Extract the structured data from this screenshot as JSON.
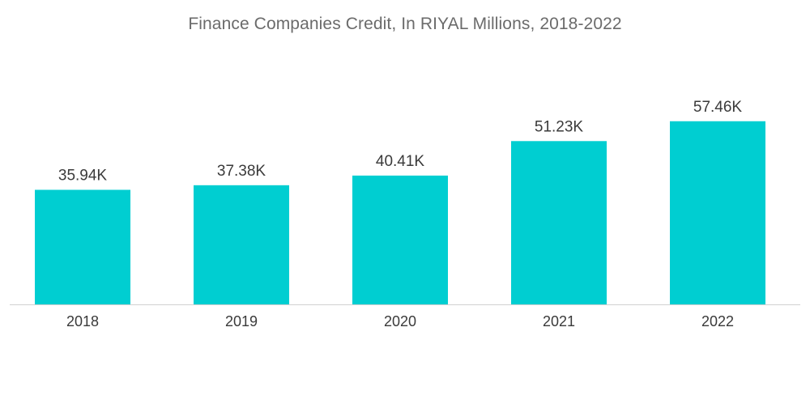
{
  "chart_data": {
    "type": "bar",
    "title": "Finance Companies Credit, In RIYAL Millions, 2018-2022",
    "categories": [
      "2018",
      "2019",
      "2020",
      "2021",
      "2022"
    ],
    "values": [
      35940,
      37380,
      40410,
      51230,
      57460
    ],
    "data_labels": [
      "35.94K",
      "37.38K",
      "40.41K",
      "51.23K",
      "57.46K"
    ],
    "xlabel": "",
    "ylabel": "",
    "ylim": [
      0,
      64000
    ],
    "grid": false,
    "legend": "none",
    "bar_color": "#00ced1",
    "axis_color": "#d0d0d0"
  }
}
